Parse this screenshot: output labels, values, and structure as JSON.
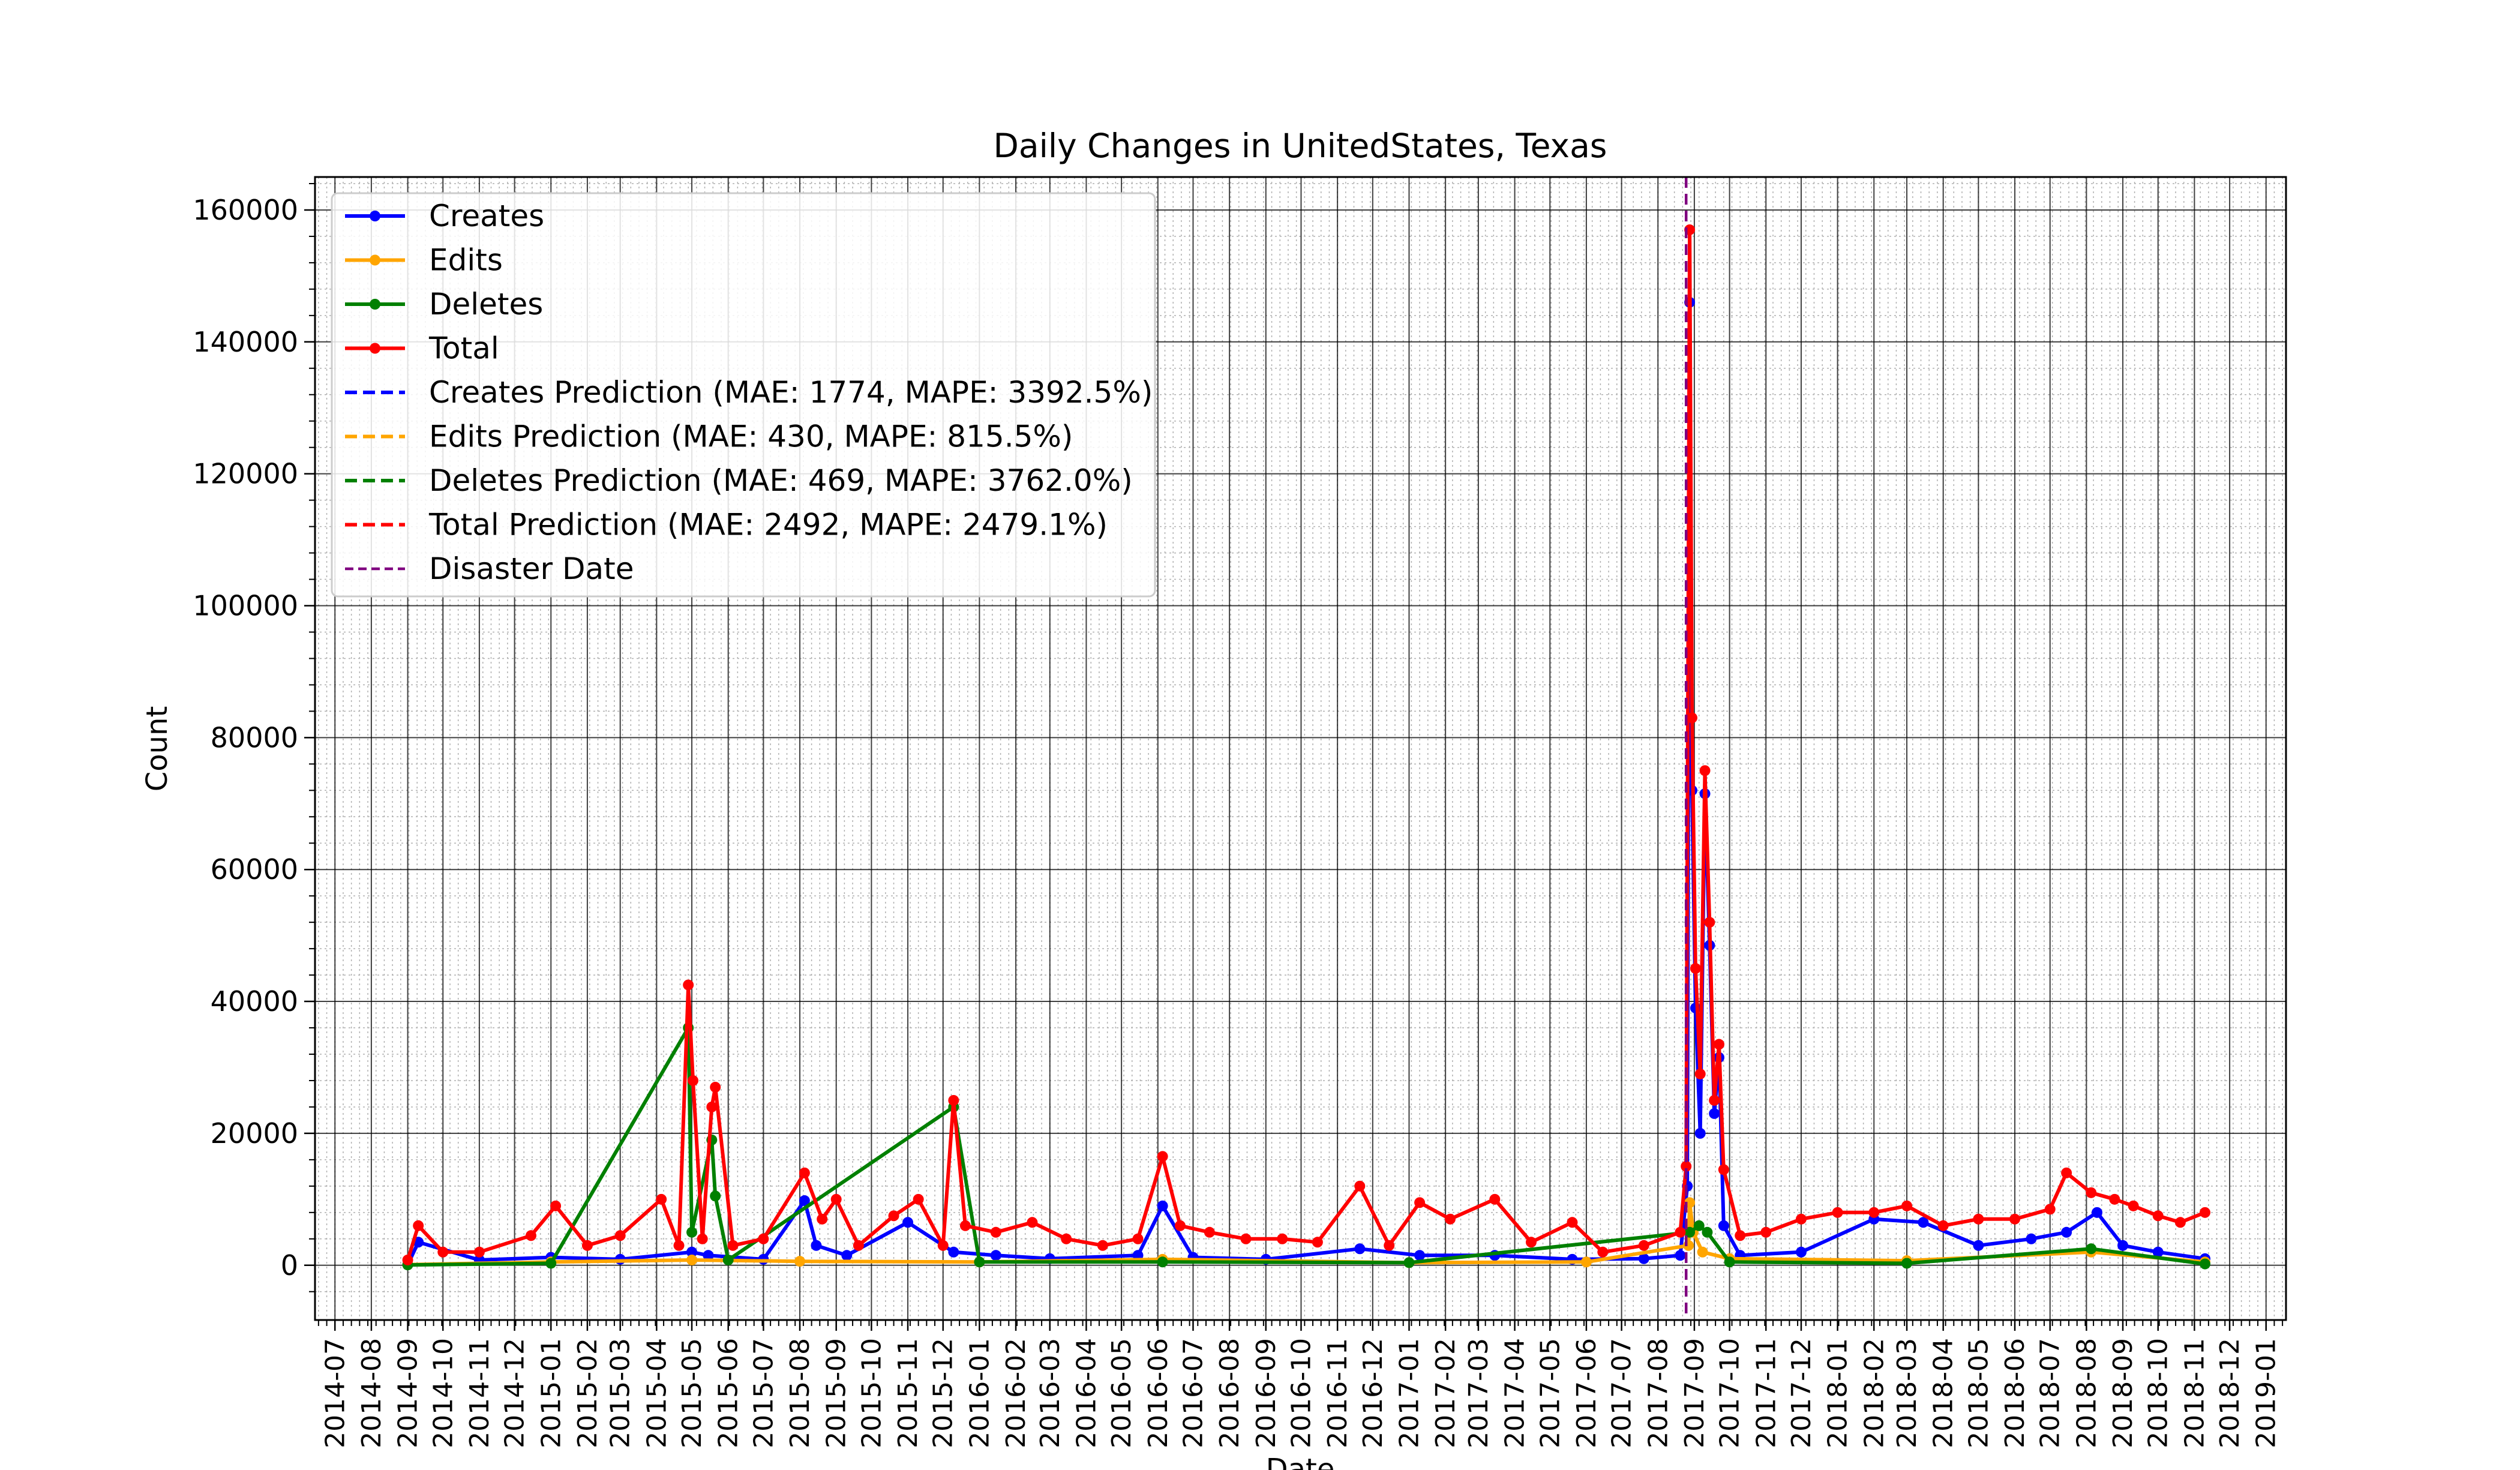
{
  "chart_data": {
    "type": "line",
    "title": "Daily Changes in UnitedStates, Texas",
    "xlabel": "Date",
    "ylabel": "Count",
    "xlim": [
      "2014-06-14",
      "2019-01-18"
    ],
    "ylim": [
      -8300,
      165000
    ],
    "y_ticks": [
      0,
      20000,
      40000,
      60000,
      80000,
      100000,
      120000,
      140000,
      160000
    ],
    "x_ticks": [
      "2014-07",
      "2014-08",
      "2014-09",
      "2014-10",
      "2014-11",
      "2014-12",
      "2015-01",
      "2015-02",
      "2015-03",
      "2015-04",
      "2015-05",
      "2015-06",
      "2015-07",
      "2015-08",
      "2015-09",
      "2015-10",
      "2015-11",
      "2015-12",
      "2016-01",
      "2016-02",
      "2016-03",
      "2016-04",
      "2016-05",
      "2016-06",
      "2016-07",
      "2016-08",
      "2016-09",
      "2016-10",
      "2016-11",
      "2016-12",
      "2017-01",
      "2017-02",
      "2017-03",
      "2017-04",
      "2017-05",
      "2017-06",
      "2017-07",
      "2017-08",
      "2017-09",
      "2017-10",
      "2017-11",
      "2017-12",
      "2018-01",
      "2018-02",
      "2018-03",
      "2018-04",
      "2018-05",
      "2018-06",
      "2018-07",
      "2018-08",
      "2018-09",
      "2018-10",
      "2018-11",
      "2018-12",
      "2019-01"
    ],
    "grid": true,
    "minor_grid": true,
    "legend_position": "upper-left",
    "disaster_date": "2017-08-25",
    "series": [
      {
        "name": "Creates",
        "color": "#0000ff",
        "style": "solid-marker",
        "points": [
          [
            "2014-09-01",
            100
          ],
          [
            "2014-09-10",
            3500
          ],
          [
            "2014-11-01",
            800
          ],
          [
            "2015-01-01",
            1200
          ],
          [
            "2015-03-01",
            900
          ],
          [
            "2015-05-01",
            2000
          ],
          [
            "2015-05-15",
            1500
          ],
          [
            "2015-07-01",
            900
          ],
          [
            "2015-08-05",
            9800
          ],
          [
            "2015-08-15",
            3000
          ],
          [
            "2015-09-10",
            1500
          ],
          [
            "2015-11-01",
            6500
          ],
          [
            "2015-12-10",
            2000
          ],
          [
            "2016-01-15",
            1500
          ],
          [
            "2016-03-01",
            1000
          ],
          [
            "2016-05-15",
            1500
          ],
          [
            "2016-06-05",
            9000
          ],
          [
            "2016-07-01",
            1200
          ],
          [
            "2016-09-01",
            900
          ],
          [
            "2016-11-20",
            2500
          ],
          [
            "2017-01-10",
            1500
          ],
          [
            "2017-03-15",
            1500
          ],
          [
            "2017-05-20",
            900
          ],
          [
            "2017-07-20",
            1000
          ],
          [
            "2017-08-20",
            1500
          ],
          [
            "2017-08-26",
            12000
          ],
          [
            "2017-08-28",
            146000
          ],
          [
            "2017-08-30",
            72000
          ],
          [
            "2017-09-02",
            39000
          ],
          [
            "2017-09-06",
            20000
          ],
          [
            "2017-09-10",
            71500
          ],
          [
            "2017-09-14",
            48500
          ],
          [
            "2017-09-18",
            23000
          ],
          [
            "2017-09-22",
            31500
          ],
          [
            "2017-09-26",
            6000
          ],
          [
            "2017-10-10",
            1500
          ],
          [
            "2017-12-01",
            2000
          ],
          [
            "2018-02-01",
            7000
          ],
          [
            "2018-03-15",
            6500
          ],
          [
            "2018-05-01",
            3000
          ],
          [
            "2018-06-15",
            4000
          ],
          [
            "2018-07-15",
            5000
          ],
          [
            "2018-08-10",
            8000
          ],
          [
            "2018-09-01",
            3000
          ],
          [
            "2018-10-01",
            2000
          ],
          [
            "2018-11-10",
            1000
          ]
        ]
      },
      {
        "name": "Edits",
        "color": "#ffa500",
        "style": "solid-marker",
        "points": [
          [
            "2014-09-01",
            100
          ],
          [
            "2015-01-01",
            500
          ],
          [
            "2015-05-01",
            800
          ],
          [
            "2015-08-01",
            600
          ],
          [
            "2016-01-01",
            500
          ],
          [
            "2016-06-05",
            900
          ],
          [
            "2017-01-01",
            400
          ],
          [
            "2017-06-01",
            500
          ],
          [
            "2017-08-27",
            3000
          ],
          [
            "2017-08-28",
            9500
          ],
          [
            "2017-08-31",
            5000
          ],
          [
            "2017-09-08",
            2000
          ],
          [
            "2017-10-01",
            1000
          ],
          [
            "2018-03-01",
            700
          ],
          [
            "2018-08-05",
            2000
          ],
          [
            "2018-11-10",
            500
          ]
        ]
      },
      {
        "name": "Deletes",
        "color": "#008000",
        "style": "solid-marker",
        "points": [
          [
            "2014-09-01",
            50
          ],
          [
            "2015-01-01",
            300
          ],
          [
            "2015-04-28",
            36000
          ],
          [
            "2015-05-01",
            5000
          ],
          [
            "2015-05-18",
            19000
          ],
          [
            "2015-05-21",
            10500
          ],
          [
            "2015-06-01",
            800
          ],
          [
            "2015-12-10",
            24000
          ],
          [
            "2016-01-01",
            500
          ],
          [
            "2016-06-05",
            500
          ],
          [
            "2017-01-01",
            400
          ],
          [
            "2017-08-28",
            5000
          ],
          [
            "2017-09-05",
            6000
          ],
          [
            "2017-09-12",
            5000
          ],
          [
            "2017-10-01",
            500
          ],
          [
            "2018-03-01",
            300
          ],
          [
            "2018-08-05",
            2500
          ],
          [
            "2018-11-10",
            200
          ]
        ]
      },
      {
        "name": "Total",
        "color": "#ff0000",
        "style": "solid-marker",
        "points": [
          [
            "2014-09-01",
            800
          ],
          [
            "2014-09-10",
            6000
          ],
          [
            "2014-10-01",
            2000
          ],
          [
            "2014-11-01",
            2000
          ],
          [
            "2014-12-15",
            4500
          ],
          [
            "2015-01-05",
            9000
          ],
          [
            "2015-02-01",
            3000
          ],
          [
            "2015-03-01",
            4500
          ],
          [
            "2015-04-05",
            10000
          ],
          [
            "2015-04-20",
            3000
          ],
          [
            "2015-04-28",
            42500
          ],
          [
            "2015-05-02",
            28000
          ],
          [
            "2015-05-10",
            4000
          ],
          [
            "2015-05-18",
            24000
          ],
          [
            "2015-05-21",
            27000
          ],
          [
            "2015-06-05",
            3000
          ],
          [
            "2015-07-01",
            4000
          ],
          [
            "2015-08-05",
            14000
          ],
          [
            "2015-08-20",
            7000
          ],
          [
            "2015-09-01",
            10000
          ],
          [
            "2015-09-20",
            3000
          ],
          [
            "2015-10-20",
            7500
          ],
          [
            "2015-11-10",
            10000
          ],
          [
            "2015-12-01",
            3000
          ],
          [
            "2015-12-10",
            25000
          ],
          [
            "2015-12-20",
            6000
          ],
          [
            "2016-01-15",
            5000
          ],
          [
            "2016-02-15",
            6500
          ],
          [
            "2016-03-15",
            4000
          ],
          [
            "2016-04-15",
            3000
          ],
          [
            "2016-05-15",
            4000
          ],
          [
            "2016-06-05",
            16500
          ],
          [
            "2016-06-20",
            6000
          ],
          [
            "2016-07-15",
            5000
          ],
          [
            "2016-08-15",
            4000
          ],
          [
            "2016-09-15",
            4000
          ],
          [
            "2016-10-15",
            3500
          ],
          [
            "2016-11-20",
            12000
          ],
          [
            "2016-12-15",
            3000
          ],
          [
            "2017-01-10",
            9500
          ],
          [
            "2017-02-05",
            7000
          ],
          [
            "2017-03-15",
            10000
          ],
          [
            "2017-04-15",
            3500
          ],
          [
            "2017-05-20",
            6500
          ],
          [
            "2017-06-15",
            2000
          ],
          [
            "2017-07-20",
            3000
          ],
          [
            "2017-08-20",
            5000
          ],
          [
            "2017-08-25",
            15000
          ],
          [
            "2017-08-28",
            157000
          ],
          [
            "2017-08-30",
            83000
          ],
          [
            "2017-09-02",
            45000
          ],
          [
            "2017-09-06",
            29000
          ],
          [
            "2017-09-10",
            75000
          ],
          [
            "2017-09-14",
            52000
          ],
          [
            "2017-09-18",
            25000
          ],
          [
            "2017-09-22",
            33500
          ],
          [
            "2017-09-26",
            14500
          ],
          [
            "2017-10-10",
            4500
          ],
          [
            "2017-11-01",
            5000
          ],
          [
            "2017-12-01",
            7000
          ],
          [
            "2018-01-01",
            8000
          ],
          [
            "2018-02-01",
            8000
          ],
          [
            "2018-03-01",
            9000
          ],
          [
            "2018-04-01",
            6000
          ],
          [
            "2018-05-01",
            7000
          ],
          [
            "2018-06-01",
            7000
          ],
          [
            "2018-07-01",
            8500
          ],
          [
            "2018-07-15",
            14000
          ],
          [
            "2018-08-05",
            11000
          ],
          [
            "2018-08-25",
            10000
          ],
          [
            "2018-09-10",
            9000
          ],
          [
            "2018-10-01",
            7500
          ],
          [
            "2018-10-20",
            6500
          ],
          [
            "2018-11-10",
            8000
          ]
        ]
      },
      {
        "name": "Creates Prediction (MAE: 1774, MAPE: 3392.5%)",
        "color": "#0000ff",
        "style": "dashed"
      },
      {
        "name": "Edits Prediction (MAE: 430, MAPE: 815.5%)",
        "color": "#ffa500",
        "style": "dashed"
      },
      {
        "name": "Deletes Prediction (MAE: 469, MAPE: 3762.0%)",
        "color": "#008000",
        "style": "dashed"
      },
      {
        "name": "Total Prediction (MAE: 2492, MAPE: 2479.1%)",
        "color": "#ff0000",
        "style": "dashed"
      },
      {
        "name": "Disaster Date",
        "color": "#800080",
        "style": "dashed"
      }
    ]
  }
}
